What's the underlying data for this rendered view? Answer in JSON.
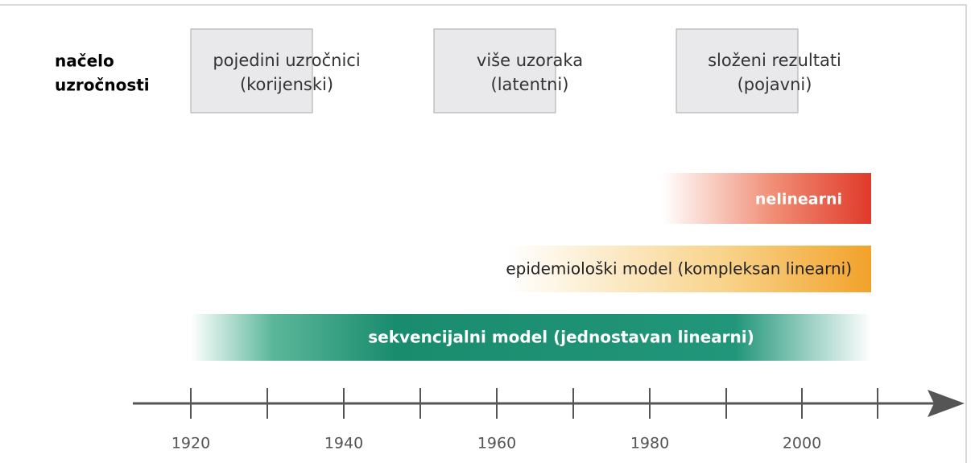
{
  "principle_label": [
    "načelo",
    "uzročnosti"
  ],
  "boxes": [
    {
      "lines": [
        "pojedini uzročnici",
        "(korijenski)"
      ]
    },
    {
      "lines": [
        "više uzoraka",
        "(latentni)"
      ]
    },
    {
      "lines": [
        "složeni rezultati",
        "(pojavni)"
      ]
    }
  ],
  "bars": [
    {
      "label": "nelinearni"
    },
    {
      "label": "epidemiološki model (kompleksan linearni)"
    },
    {
      "label": "sekvencijalni model (jednostavan linearni)"
    }
  ],
  "timeline": {
    "labels": [
      "1920",
      "1940",
      "1960",
      "1980",
      "2000"
    ]
  }
}
